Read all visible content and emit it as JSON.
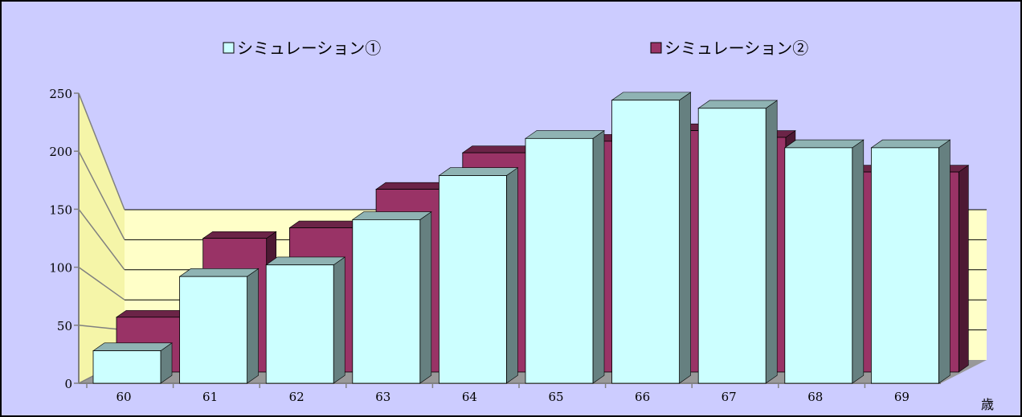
{
  "chart_data": {
    "type": "bar",
    "title": "",
    "xlabel": "",
    "ylabel": "",
    "x_unit": "歳",
    "categories": [
      "60",
      "61",
      "62",
      "63",
      "64",
      "65",
      "66",
      "67",
      "68",
      "69"
    ],
    "series": [
      {
        "name": "シミュレーション①",
        "values": [
          28,
          92,
          102,
          141,
          179,
          211,
          244,
          237,
          203,
          203
        ]
      },
      {
        "name": "シミュレーション②",
        "values": [
          57,
          139,
          150,
          190,
          228,
          240,
          251,
          244,
          208,
          208
        ]
      }
    ],
    "ylim": [
      0,
      250
    ],
    "yticks": [
      "0",
      "50",
      "100",
      "150",
      "200",
      "250"
    ],
    "grid": true,
    "legend": "top",
    "three_d": true,
    "colors": {
      "area": "#ccccff",
      "plot_wall": "#ffffc8",
      "side_wall": "#f5f5a8",
      "floor": "#999999",
      "series1_front": "#ccffff",
      "series1_side": "#668080",
      "series1_top": "#8fb3b3",
      "series2_front": "#993366",
      "series2_side": "#4d1933",
      "series2_top": "#6b2447",
      "axis": "#808080",
      "grid": "#000000"
    }
  }
}
